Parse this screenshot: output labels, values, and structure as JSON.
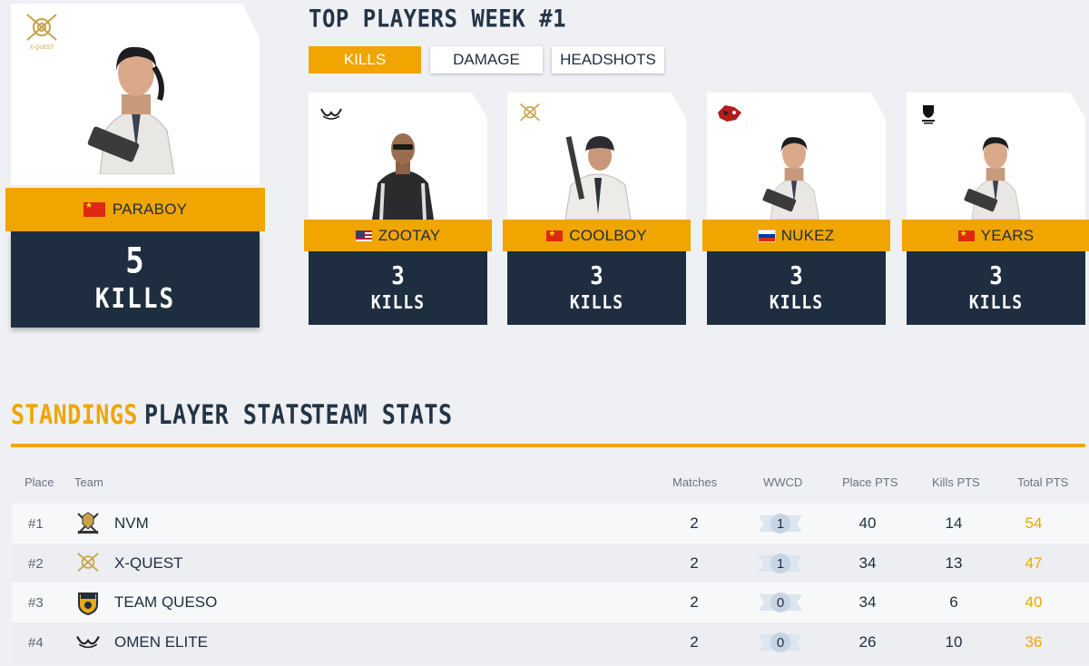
{
  "header": {
    "title": "TOP PLAYERS WEEK #1"
  },
  "tabs": [
    {
      "label": "KILLS",
      "active": true
    },
    {
      "label": "DAMAGE",
      "active": false
    },
    {
      "label": "HEADSHOTS",
      "active": false
    }
  ],
  "featured": {
    "name": "PARABOY",
    "flag": "cn",
    "team_logo": "xquest",
    "value": "5",
    "unit": "KILLS",
    "logo_text": "X-QUEST"
  },
  "players": [
    {
      "name": "ZOOTAY",
      "flag": "us",
      "team_logo": "omen",
      "value": "3",
      "unit": "KILLS"
    },
    {
      "name": "COOLBOY",
      "flag": "cn",
      "team_logo": "xquest",
      "value": "3",
      "unit": "KILLS"
    },
    {
      "name": "NUKEZ",
      "flag": "ru",
      "team_logo": "wolf",
      "value": "3",
      "unit": "KILLS"
    },
    {
      "name": "YEARS",
      "flag": "cn",
      "team_logo": "top",
      "value": "3",
      "unit": "KILLS"
    }
  ],
  "sections": [
    {
      "label": "STANDINGS",
      "active": true
    },
    {
      "label": "PLAYER STATS",
      "active": false
    },
    {
      "label": "TEAM STATS",
      "active": false
    }
  ],
  "table": {
    "headers": {
      "place": "Place",
      "team": "Team",
      "matches": "Matches",
      "wwcd": "WWCD",
      "place_pts": "Place PTS",
      "kills_pts": "Kills PTS",
      "total_pts": "Total PTS"
    },
    "rows": [
      {
        "place": "#1",
        "team": "NVM",
        "logo": "nvm",
        "matches": "2",
        "wwcd": "1",
        "place_pts": "40",
        "kills_pts": "14",
        "total": "54"
      },
      {
        "place": "#2",
        "team": "X-QUEST",
        "logo": "xquest",
        "matches": "2",
        "wwcd": "1",
        "place_pts": "34",
        "kills_pts": "13",
        "total": "47"
      },
      {
        "place": "#3",
        "team": "TEAM QUESO",
        "logo": "queso",
        "matches": "2",
        "wwcd": "0",
        "place_pts": "34",
        "kills_pts": "6",
        "total": "40"
      },
      {
        "place": "#4",
        "team": "OMEN ELITE",
        "logo": "omen",
        "matches": "2",
        "wwcd": "0",
        "place_pts": "26",
        "kills_pts": "10",
        "total": "36"
      }
    ]
  },
  "colors": {
    "accent": "#f0a500",
    "dark": "#1e2e40",
    "background": "#eef0f4"
  }
}
